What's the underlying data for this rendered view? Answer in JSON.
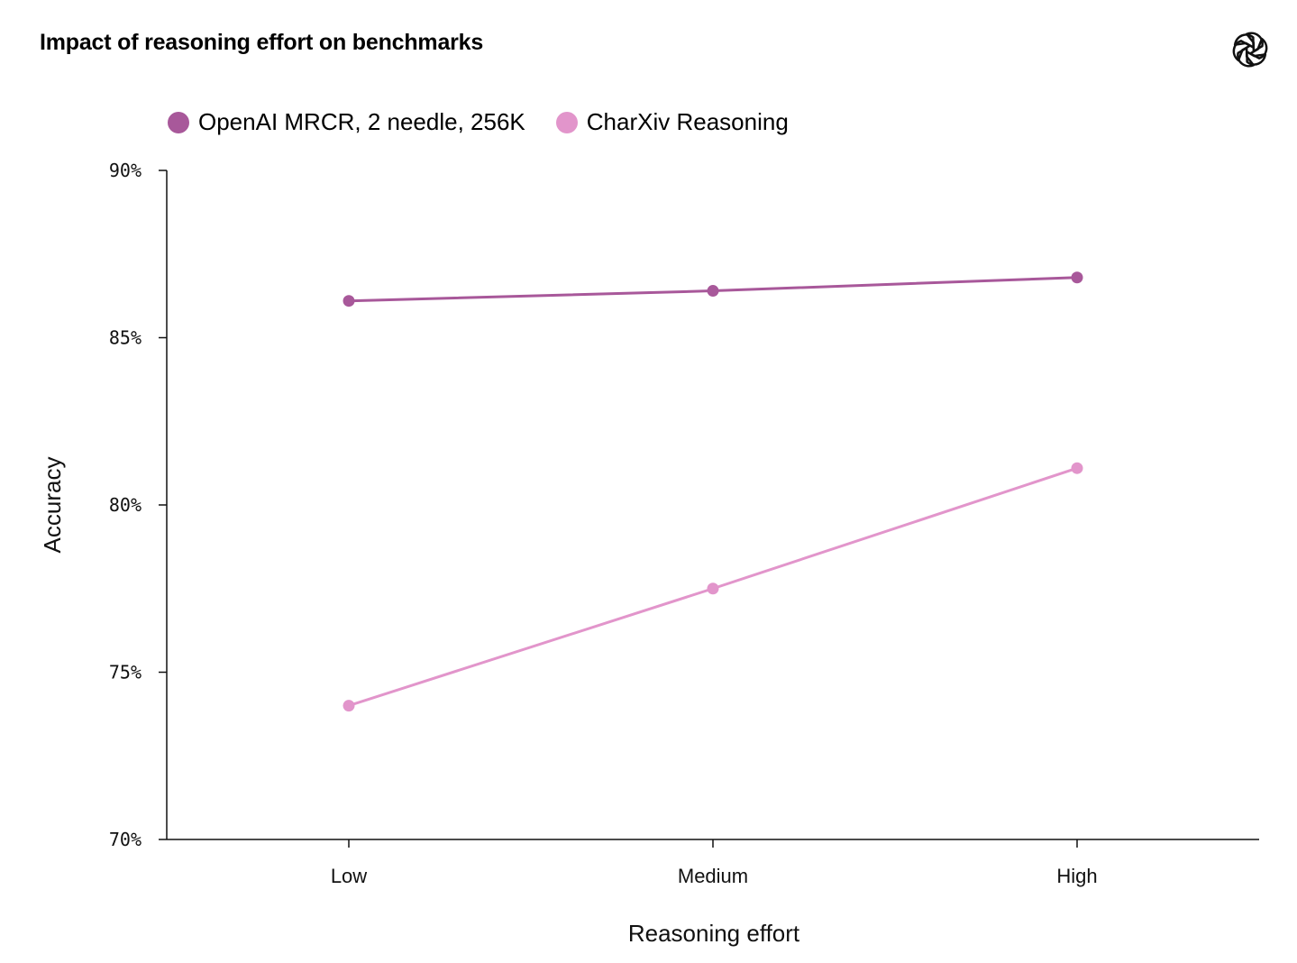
{
  "header": {
    "title": "Impact of reasoning effort on benchmarks",
    "logo_icon": "openai-logo-icon"
  },
  "chart_data": {
    "type": "line",
    "title": "Impact of reasoning effort on benchmarks",
    "xlabel": "Reasoning effort",
    "ylabel": "Accuracy",
    "categories": [
      "Low",
      "Medium",
      "High"
    ],
    "ylim": [
      70,
      90
    ],
    "yticks": [
      70,
      75,
      80,
      85,
      90
    ],
    "ytick_labels": [
      "70%",
      "75%",
      "80%",
      "85%",
      "90%"
    ],
    "grid": false,
    "legend_position": "top-left",
    "series": [
      {
        "name": "OpenAI MRCR, 2 needle, 256K",
        "color": "#a8589a",
        "values": [
          86.1,
          86.4,
          86.8
        ]
      },
      {
        "name": "CharXiv Reasoning",
        "color": "#e295cb",
        "values": [
          74.0,
          77.5,
          81.1
        ]
      }
    ]
  }
}
